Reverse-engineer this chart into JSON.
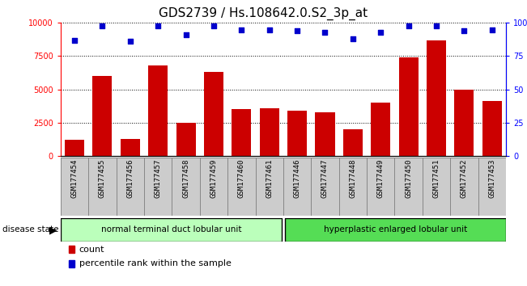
{
  "title": "GDS2739 / Hs.108642.0.S2_3p_at",
  "categories": [
    "GSM177454",
    "GSM177455",
    "GSM177456",
    "GSM177457",
    "GSM177458",
    "GSM177459",
    "GSM177460",
    "GSM177461",
    "GSM177446",
    "GSM177447",
    "GSM177448",
    "GSM177449",
    "GSM177450",
    "GSM177451",
    "GSM177452",
    "GSM177453"
  ],
  "counts": [
    1200,
    6000,
    1300,
    6800,
    2500,
    6300,
    3500,
    3600,
    3400,
    3300,
    2000,
    4000,
    7400,
    8700,
    5000,
    4100
  ],
  "percentiles": [
    87,
    98,
    86,
    98,
    91,
    98,
    95,
    95,
    94,
    93,
    88,
    93,
    98,
    98,
    94,
    95
  ],
  "bar_color": "#cc0000",
  "dot_color": "#0000cc",
  "ylim_left": [
    0,
    10000
  ],
  "ylim_right": [
    0,
    100
  ],
  "yticks_left": [
    0,
    2500,
    5000,
    7500,
    10000
  ],
  "yticks_right": [
    0,
    25,
    50,
    75,
    100
  ],
  "group1_label": "normal terminal duct lobular unit",
  "group2_label": "hyperplastic enlarged lobular unit",
  "group1_count": 8,
  "group2_count": 8,
  "disease_state_label": "disease state",
  "legend_count_label": "count",
  "legend_percentile_label": "percentile rank within the sample",
  "group1_color": "#bbffbb",
  "group2_color": "#55dd55",
  "grid_color": "#000000",
  "title_fontsize": 11,
  "tick_fontsize": 7,
  "xtick_bg": "#cccccc",
  "xtick_border": "#888888"
}
